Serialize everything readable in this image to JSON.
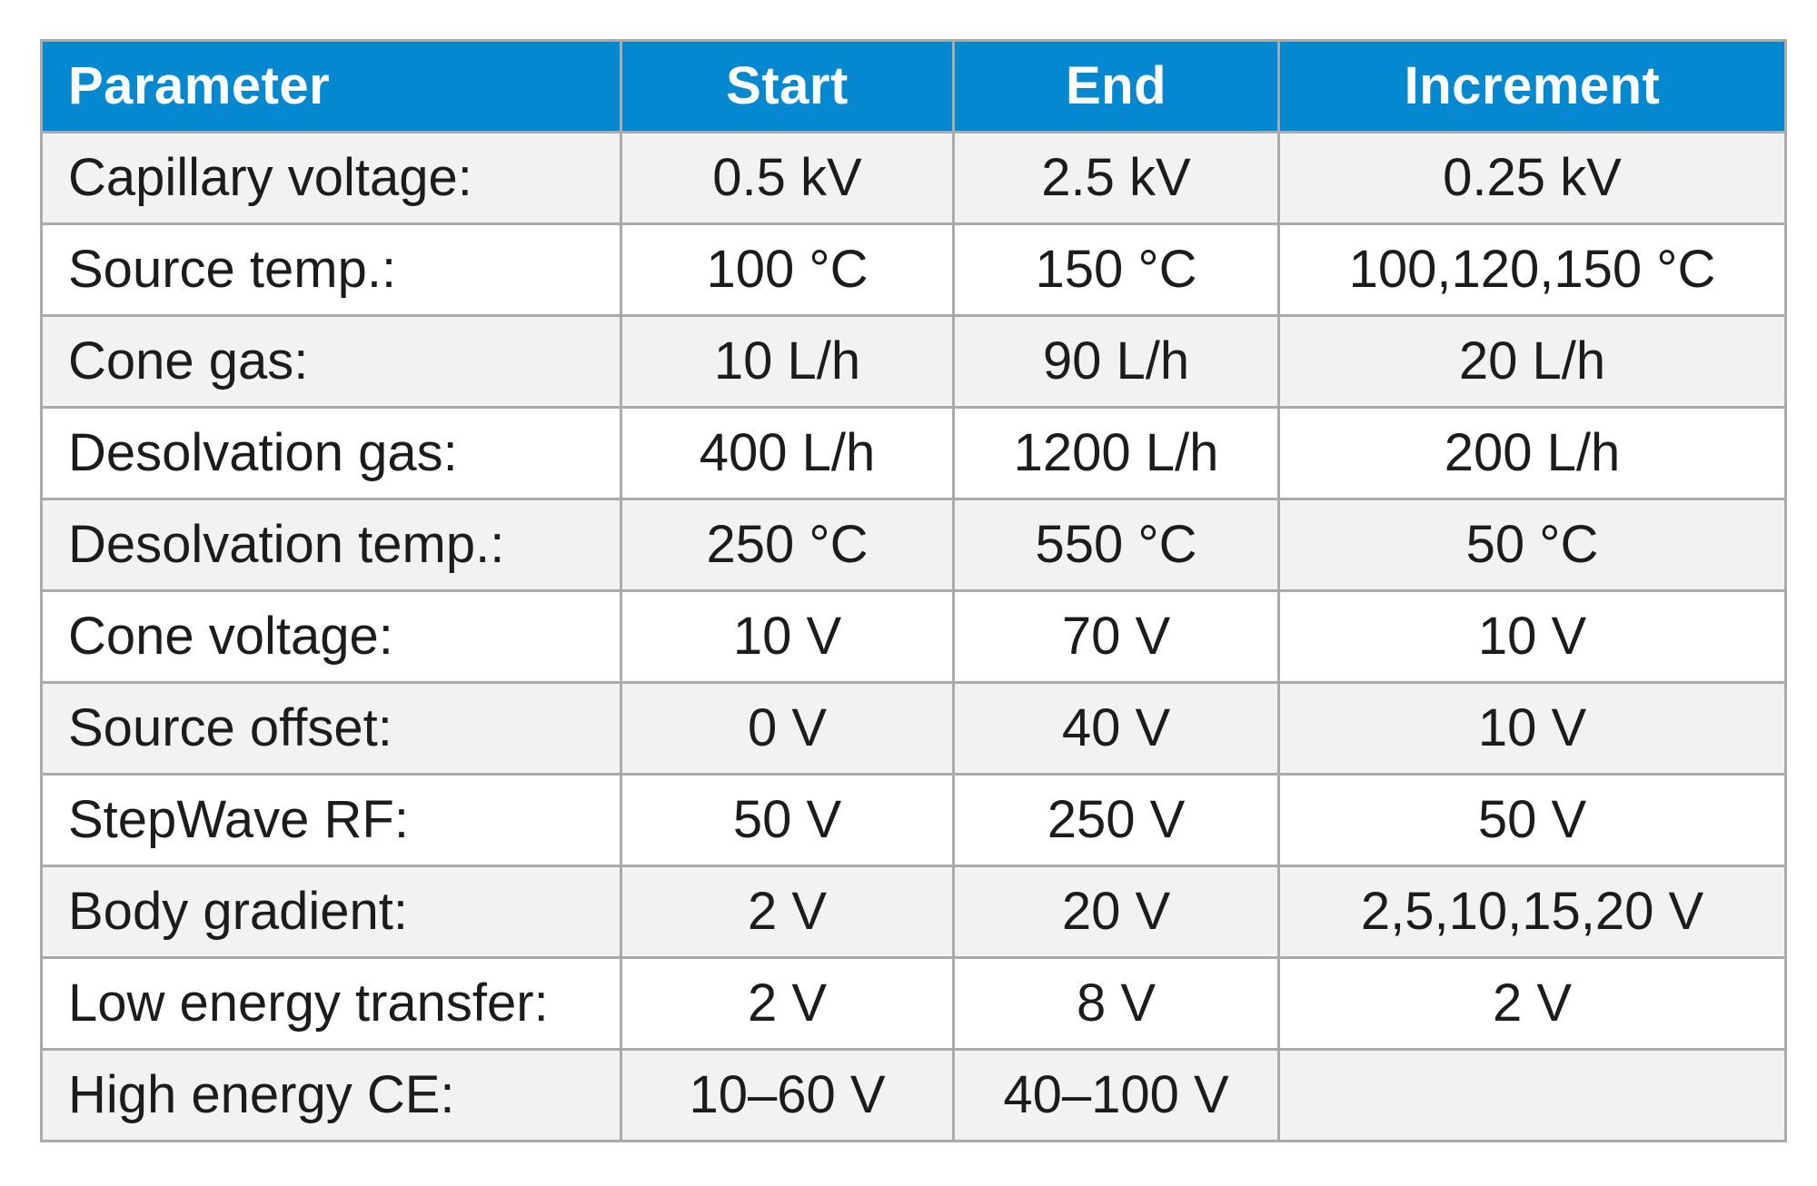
{
  "table": {
    "headers": [
      "Parameter",
      "Start",
      "End",
      "Increment"
    ],
    "rows": [
      [
        "Capillary voltage:",
        "0.5 kV",
        "2.5 kV",
        "0.25 kV"
      ],
      [
        "Source temp.:",
        "100 °C",
        "150 °C",
        "100,120,150 °C"
      ],
      [
        "Cone gas:",
        "10 L/h",
        "90 L/h",
        "20 L/h"
      ],
      [
        "Desolvation gas:",
        "400 L/h",
        "1200 L/h",
        "200 L/h"
      ],
      [
        "Desolvation temp.:",
        "250 °C",
        "550 °C",
        "50 °C"
      ],
      [
        "Cone voltage:",
        "10 V",
        "70 V",
        "10 V"
      ],
      [
        "Source offset:",
        "0 V",
        "40 V",
        "10 V"
      ],
      [
        "StepWave RF:",
        "50 V",
        "250 V",
        "50 V"
      ],
      [
        "Body gradient:",
        "2 V",
        "20 V",
        "2,5,10,15,20 V"
      ],
      [
        "Low energy transfer:",
        "2 V",
        "8 V",
        "2 V"
      ],
      [
        "High energy CE:",
        "10–60 V",
        "40–100 V",
        ""
      ]
    ]
  },
  "colors": {
    "header_bg": "#0489d0",
    "header_text": "#ffffff",
    "row_odd_bg": "#f1f2f4",
    "row_even_bg": "#ffffff",
    "border": "#a9aaac",
    "text": "#1c1c1c"
  }
}
